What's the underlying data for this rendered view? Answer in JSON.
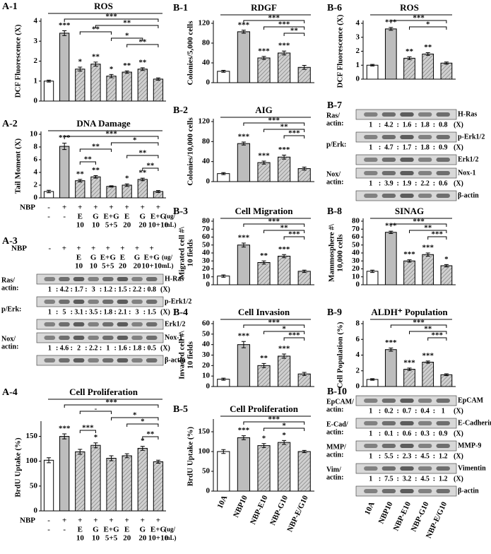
{
  "chart_data": [
    {
      "type": "bar",
      "label": "A-1",
      "title": "ROS",
      "ylabel": [
        "DCF Fluorescence (X)"
      ],
      "values": [
        1,
        3.4,
        1.6,
        1.85,
        1.25,
        1.45,
        1.6,
        1.1
      ],
      "errors": [
        0.05,
        0.12,
        0.1,
        0.1,
        0.08,
        0.06,
        0.07,
        0.06
      ],
      "ylim": [
        0,
        4
      ],
      "yticks": [
        0,
        1,
        2,
        3,
        4
      ],
      "control_color": "#ffffff",
      "color": "#bdbdbd",
      "hatch": true,
      "stars": [
        null,
        "***",
        "*",
        "**",
        "*",
        "**",
        "**",
        null
      ],
      "brackets": [
        {
          "label": "***",
          "span": [
            1,
            7
          ]
        },
        {
          "label": "**",
          "span": [
            3,
            7
          ]
        },
        {
          "label": "**",
          "span": [
            2,
            4
          ]
        },
        {
          "label": "*",
          "span": [
            4,
            6
          ]
        },
        {
          "label": "**",
          "span": [
            5,
            7
          ]
        }
      ]
    },
    {
      "type": "bar",
      "label": "A-2",
      "title": "DNA Damage",
      "ylabel": [
        "Tail Moment (X)"
      ],
      "values": [
        1,
        8.1,
        2.7,
        3.3,
        1.8,
        2.0,
        2.9,
        1.0
      ],
      "errors": [
        0.2,
        0.5,
        0.2,
        0.2,
        0.1,
        0.2,
        0.2,
        0.15
      ],
      "ylim": [
        0,
        10
      ],
      "yticks": [
        0,
        2,
        4,
        6,
        8,
        10
      ],
      "control_color": "#ffffff",
      "color": "#bdbdbd",
      "hatch": true,
      "stars": [
        null,
        "***",
        "**",
        "**",
        null,
        "*",
        "**",
        null
      ],
      "brackets": [
        {
          "label": "***",
          "span": [
            1,
            7
          ]
        },
        {
          "label": "*",
          "span": [
            4,
            7
          ]
        },
        {
          "label": "**",
          "span": [
            2,
            4
          ]
        },
        {
          "label": "**",
          "span": [
            5,
            7
          ]
        },
        {
          "label": "**",
          "span": [
            2,
            3
          ]
        },
        {
          "label": "**",
          "span": [
            6,
            7
          ]
        }
      ],
      "xrows": {
        "row_label": "NBP",
        "nbp": [
          "-",
          "+",
          "+",
          "+",
          "+",
          "+",
          "+",
          "+"
        ],
        "agent": [
          "-",
          "-",
          "E",
          "G",
          "E+G",
          "E",
          "G",
          "E+G"
        ],
        "dose": [
          null,
          null,
          "10",
          "10",
          "5+5",
          "20",
          "20",
          "10+10"
        ],
        "unit": [
          "(ug/",
          "mL)"
        ]
      }
    },
    {
      "type": "bar",
      "label": "A-4",
      "title": "Cell Proliferation",
      "ylabel": [
        "BrdU Uptake (%)"
      ],
      "values": [
        102,
        150,
        119,
        132,
        106,
        111,
        126,
        99
      ],
      "errors": [
        5,
        5,
        5,
        5,
        5,
        4,
        4,
        3
      ],
      "ylim": [
        0,
        175
      ],
      "yticks": [
        0,
        50,
        100,
        150
      ],
      "control_color": "#ffffff",
      "color": "#bdbdbd",
      "hatch": true,
      "stars": [
        null,
        "***",
        null,
        "*",
        null,
        null,
        "*",
        null
      ],
      "brackets": [
        {
          "label": "***",
          "span": [
            1,
            7
          ]
        },
        {
          "label": "-",
          "span": [
            2,
            4
          ]
        },
        {
          "label": "*",
          "span": [
            4,
            7
          ]
        },
        {
          "label": "*",
          "span": [
            5,
            7
          ]
        },
        {
          "label": "***",
          "span": [
            2,
            3
          ]
        },
        {
          "label": "**",
          "span": [
            6,
            7
          ]
        }
      ],
      "xrows": {
        "row_label": "NBP",
        "nbp": [
          "-",
          "+",
          "+",
          "+",
          "+",
          "+",
          "+",
          "+"
        ],
        "agent": [
          "-",
          "-",
          "E",
          "G",
          "E+G",
          "E",
          "G",
          "E+G"
        ],
        "dose": [
          null,
          null,
          "10",
          "10",
          "5+5",
          "20",
          "20",
          "10+10"
        ],
        "unit": [
          "(ug/",
          "mL)"
        ]
      }
    },
    {
      "type": "bar",
      "label": "B-1",
      "title": "RDGF",
      "ylabel": [
        "Colonies/5,000 cells"
      ],
      "values": [
        23,
        103,
        50,
        60,
        31
      ],
      "errors": [
        2,
        3,
        3,
        4,
        4
      ],
      "ylim": [
        0,
        120
      ],
      "yticks": [
        0,
        40,
        80,
        120
      ],
      "control_color": "#ffffff",
      "color": "#bdbdbd",
      "hatch": true,
      "stars": [
        null,
        "***",
        "***",
        "***",
        null
      ],
      "brackets": [
        {
          "label": "***",
          "span": [
            1,
            4
          ]
        },
        {
          "label": "***",
          "span": [
            2,
            4
          ]
        },
        {
          "label": "**",
          "span": [
            3,
            4
          ]
        }
      ]
    },
    {
      "type": "bar",
      "label": "B-2",
      "title": "AIG",
      "ylabel": [
        "Colonies/10,000 cells"
      ],
      "values": [
        16,
        76,
        38,
        49,
        26
      ],
      "errors": [
        2,
        3,
        3,
        4,
        3
      ],
      "ylim": [
        0,
        120
      ],
      "yticks": [
        0,
        40,
        80,
        120
      ],
      "control_color": "#ffffff",
      "color": "#bdbdbd",
      "hatch": true,
      "stars": [
        null,
        "***",
        "***",
        "***",
        null
      ],
      "brackets": [
        {
          "label": "***",
          "span": [
            1,
            4
          ]
        },
        {
          "label": "**",
          "span": [
            2,
            4
          ]
        },
        {
          "label": "***",
          "span": [
            3,
            4
          ]
        }
      ]
    },
    {
      "type": "bar",
      "label": "B-3",
      "title": "Cell Migration",
      "ylabel": [
        "Migrated cell #\\",
        "10 fields"
      ],
      "values": [
        11,
        50,
        28,
        36,
        17
      ],
      "errors": [
        1.5,
        2.5,
        2,
        2,
        1.5
      ],
      "ylim": [
        0,
        80
      ],
      "yticks": [
        0,
        10,
        20,
        30,
        40,
        50,
        60,
        70,
        80
      ],
      "control_color": "#ffffff",
      "color": "#bdbdbd",
      "hatch": true,
      "stars": [
        null,
        "***",
        "**",
        "***",
        null
      ],
      "brackets": [
        {
          "label": "***",
          "span": [
            1,
            4
          ]
        },
        {
          "label": "**",
          "span": [
            2,
            4
          ]
        },
        {
          "label": "***",
          "span": [
            3,
            4
          ]
        }
      ]
    },
    {
      "type": "bar",
      "label": "B-4",
      "title": "Cell Invasion",
      "ylabel": [
        "Invaded cell #\\",
        "10 fields"
      ],
      "values": [
        7,
        40,
        20,
        29,
        12
      ],
      "errors": [
        1,
        3,
        2,
        2,
        1.5
      ],
      "ylim": [
        0,
        60
      ],
      "yticks": [
        0,
        10,
        20,
        30,
        40,
        50,
        60
      ],
      "control_color": "#ffffff",
      "color": "#bdbdbd",
      "hatch": true,
      "stars": [
        null,
        "***",
        "**",
        "***",
        null
      ],
      "brackets": [
        {
          "label": "***",
          "span": [
            1,
            4
          ]
        },
        {
          "label": "*",
          "span": [
            2,
            4
          ]
        },
        {
          "label": "***",
          "span": [
            3,
            4
          ]
        }
      ]
    },
    {
      "type": "bar",
      "label": "B-5",
      "title": "Cell Proliferation",
      "ylabel": [
        "BrdU Uptake (%)"
      ],
      "values": [
        100,
        135,
        115,
        123,
        100
      ],
      "errors": [
        5,
        5,
        5,
        5,
        3
      ],
      "ylim": [
        0,
        175
      ],
      "yticks": [
        0,
        50,
        100,
        150
      ],
      "control_color": "#ffffff",
      "color": "#bdbdbd",
      "hatch": true,
      "stars": [
        null,
        "***",
        "*",
        "*",
        null
      ],
      "brackets": [
        {
          "label": "***",
          "span": [
            1,
            4
          ]
        },
        {
          "label": "*",
          "span": [
            2,
            4
          ]
        }
      ],
      "categories": [
        "10A",
        "NBP10",
        "NBP-E10",
        "NBP-G10",
        "NBP-E/G10"
      ]
    },
    {
      "type": "bar",
      "label": "B-6",
      "title": "ROS",
      "ylabel": [
        "DCF Fluorescence (X)"
      ],
      "values": [
        1,
        3.6,
        1.5,
        1.8,
        1.15
      ],
      "errors": [
        0.06,
        0.1,
        0.1,
        0.1,
        0.08
      ],
      "ylim": [
        0,
        4
      ],
      "yticks": [
        0,
        1,
        2,
        3,
        4
      ],
      "control_color": "#ffffff",
      "color": "#bdbdbd",
      "hatch": true,
      "stars": [
        null,
        "***",
        "**",
        "**",
        null
      ],
      "brackets": [
        {
          "label": "***",
          "span": [
            1,
            4
          ]
        },
        {
          "label": "*",
          "span": [
            2,
            4
          ]
        }
      ]
    },
    {
      "type": "bar",
      "label": "B-8",
      "title": "SINAG",
      "ylabel": [
        "Mammosphere #\\",
        "10,000 cells"
      ],
      "values": [
        17,
        66,
        30,
        38,
        24
      ],
      "errors": [
        1.5,
        1.5,
        1.5,
        2,
        1.5
      ],
      "ylim": [
        0,
        80
      ],
      "yticks": [
        0,
        10,
        20,
        30,
        40,
        50,
        60,
        70,
        80
      ],
      "control_color": "#ffffff",
      "color": "#bdbdbd",
      "hatch": true,
      "stars": [
        null,
        "***",
        "***",
        "***",
        "*"
      ],
      "brackets": [
        {
          "label": "***",
          "span": [
            1,
            4
          ]
        },
        {
          "label": "**",
          "span": [
            2,
            4
          ]
        },
        {
          "label": "***",
          "span": [
            3,
            4
          ]
        }
      ]
    },
    {
      "type": "bar",
      "label": "B-9",
      "title": "ALDH⁺ Population",
      "ylabel": [
        "Cell Population (%)"
      ],
      "values": [
        0.9,
        4.7,
        2.2,
        3.1,
        1.5
      ],
      "errors": [
        0.1,
        0.2,
        0.15,
        0.15,
        0.12
      ],
      "ylim": [
        0,
        8
      ],
      "yticks": [
        0,
        2,
        4,
        6,
        8
      ],
      "control_color": "#ffffff",
      "color": "#bdbdbd",
      "hatch": true,
      "stars": [
        null,
        "***",
        "***",
        "***",
        null
      ],
      "brackets": [
        {
          "label": "***",
          "span": [
            1,
            4
          ]
        },
        {
          "label": "**",
          "span": [
            2,
            4
          ]
        },
        {
          "label": "***",
          "span": [
            3,
            4
          ]
        }
      ]
    }
  ],
  "blots": [
    {
      "label": "A-3",
      "separator": ":",
      "suffix": "(X)",
      "header": {
        "row_label": "NBP",
        "nbp": [
          "-",
          "+",
          "+",
          "+",
          "+",
          "+",
          "+",
          "+"
        ],
        "agent": [
          null,
          null,
          "E",
          "G",
          "E+G",
          "E",
          "G",
          "E+G"
        ],
        "dose": [
          null,
          null,
          "10",
          "10",
          "5+5",
          "20",
          "20",
          "10+10"
        ],
        "unit": [
          "(ug/",
          "mL)"
        ]
      },
      "rows": [
        {
          "band": "H-Ras",
          "ratio_label": [
            "Ras/",
            "actin:"
          ],
          "ratios": [
            1,
            4.2,
            1.7,
            3,
            1.2,
            1.5,
            2.2,
            0.8
          ]
        },
        {
          "band": "p-Erk1/2",
          "ratio_label": [
            "p/Erk:"
          ],
          "ratios": [
            1,
            5,
            3.1,
            3.5,
            1.8,
            2.1,
            3,
            1.5
          ]
        },
        {
          "band": "Erk1/2"
        },
        {
          "band": "Nox-1",
          "ratio_label": [
            "Nox/",
            "actin:"
          ],
          "ratios": [
            1,
            4.6,
            2,
            2.2,
            1,
            1.6,
            1.8,
            0.5
          ]
        },
        {
          "band": "β-actin"
        }
      ]
    },
    {
      "label": "B-7",
      "separator": ":",
      "suffix": "(X)",
      "rows": [
        {
          "band": "H-Ras",
          "ratio_label": [
            "Ras/",
            "actin:"
          ],
          "ratios": [
            1,
            4.2,
            1.6,
            1.8,
            0.8
          ]
        },
        {
          "band": "p-Erk1/2",
          "ratio_label": [
            "p/Erk:"
          ],
          "ratios": [
            1,
            4.7,
            1.7,
            1.8,
            0.9
          ]
        },
        {
          "band": "Erk1/2"
        },
        {
          "band": "Nox-1",
          "ratio_label": [
            "Nox/",
            "actin:"
          ],
          "ratios": [
            1,
            3.9,
            1.9,
            2.2,
            0.6
          ]
        },
        {
          "band": "β-actin"
        }
      ]
    },
    {
      "label": "B-10",
      "separator": ":",
      "suffix": "(X)",
      "rows": [
        {
          "band": "EpCAM",
          "ratio_label": [
            "EpCAM/",
            "actin:"
          ],
          "ratios": [
            1,
            0.2,
            0.7,
            0.4,
            1
          ]
        },
        {
          "band": "E-Cadherin",
          "ratio_label": [
            "E-Cad/",
            "actin:"
          ],
          "ratios": [
            1,
            0.1,
            0.6,
            0.3,
            0.9
          ]
        },
        {
          "band": "MMP-9",
          "ratio_label": [
            "MMP/",
            "actin:"
          ],
          "ratios": [
            1,
            5.5,
            2.3,
            4.5,
            1.2
          ]
        },
        {
          "band": "Vimentin",
          "ratio_label": [
            "Vim/",
            "actin:"
          ],
          "ratios": [
            1,
            7.5,
            3.2,
            4.5,
            1.2
          ]
        },
        {
          "band": "β-actin"
        }
      ],
      "categories": [
        "10A",
        "NBP10",
        "NBP-E10",
        "NBP-G10",
        "NBP-E/G10"
      ]
    }
  ]
}
